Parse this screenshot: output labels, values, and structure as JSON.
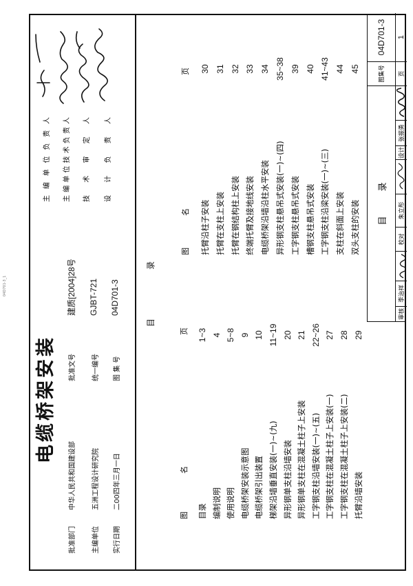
{
  "side_note": "04D701-3_1",
  "cover": {
    "title": "电缆桥架安装",
    "fields": [
      {
        "label": "批准部门",
        "value": "中华人民共和国建设部"
      },
      {
        "label": "主编单位",
        "value": "五洲工程设计研究院"
      },
      {
        "label": "实行日期",
        "value": "二00四年三月一日"
      }
    ],
    "fields2": [
      {
        "label": "批准文号",
        "value": "建质[2004]28号"
      },
      {
        "label": "统一编号",
        "value": "GJBT-721"
      },
      {
        "label": "图 集 号",
        "value": "04D701-3"
      }
    ]
  },
  "responsible": [
    {
      "label": "主编单位负责人"
    },
    {
      "label": "主编单位技术负责人"
    },
    {
      "label": "技术审定人"
    },
    {
      "label": "设计负责人"
    }
  ],
  "toc": {
    "heading_1": "目",
    "heading_2": "录",
    "col_header_name_1": "图",
    "col_header_name_2": "名",
    "col_header_page": "页",
    "column1": [
      {
        "name": "目录",
        "page": "1~3"
      },
      {
        "name": "编制说明",
        "page": "4"
      },
      {
        "name": "使用说明",
        "page": "5~8"
      },
      {
        "name": "电缆桥架安装示意图",
        "page": "9"
      },
      {
        "name": "电缆桥架引出装置",
        "page": "10"
      },
      {
        "name": "梯架沿墙垂直安装(一)~(九)",
        "page": "11~19"
      },
      {
        "name": "异形钢单支柱沿墙安装",
        "page": "20"
      },
      {
        "name": "异形钢单支柱在混凝土柱子上安装",
        "page": "21"
      },
      {
        "name": "工字钢支柱沿墙安装(一)~(五)",
        "page": "22~26"
      },
      {
        "name": "工字钢支柱在混凝土柱子上安装(一)",
        "page": "27"
      },
      {
        "name": "工字钢支柱在混凝土柱子上安装(二)",
        "page": "28"
      },
      {
        "name": "托臂沿墙安装",
        "page": "29"
      }
    ],
    "column2": [
      {
        "name": "托臂沿柱子安装",
        "page": "30"
      },
      {
        "name": "托臂在支柱上安装",
        "page": "31"
      },
      {
        "name": "托臂在钢结构柱上安装",
        "page": "32"
      },
      {
        "name": "终端托臂及接地线安装",
        "page": "33"
      },
      {
        "name": "电缆桥架沿墙沿柱水平安装",
        "page": "34"
      },
      {
        "name": "异形钢支柱悬吊式安装(一)~(四)",
        "page": "35~38"
      },
      {
        "name": "工字钢支柱悬吊式安装",
        "page": "39"
      },
      {
        "name": "槽钢支柱悬吊式安装",
        "page": "40"
      },
      {
        "name": "工字钢支柱沿梁安装(一)~(三)",
        "page": "41~43"
      },
      {
        "name": "支柱在斜面上安装",
        "page": "44"
      },
      {
        "name": "双头支柱的安装",
        "page": "45"
      }
    ]
  },
  "title_block": {
    "sheet_title_1": "目",
    "sheet_title_2": "录",
    "atlas_no_label": "图集号",
    "atlas_no": "04D701-3",
    "page_label": "页",
    "page": "1",
    "review_label": "审核",
    "reviewer": "李治祥",
    "check_label": "校对",
    "checker": "朱立彤",
    "design_label": "设计",
    "designer": "张振勇"
  }
}
